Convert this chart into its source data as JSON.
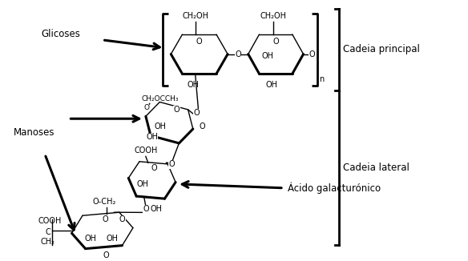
{
  "bg_color": "#ffffff",
  "text_color": "#000000",
  "label_glicoses": "Glicoses",
  "label_manoses": "Manoses",
  "label_acido": "Ácido galacturónico",
  "label_cadeia_principal": "Cadeia principal",
  "label_cadeia_lateral": "Cadeia lateral",
  "figsize": [
    5.84,
    3.26
  ],
  "dpi": 100
}
